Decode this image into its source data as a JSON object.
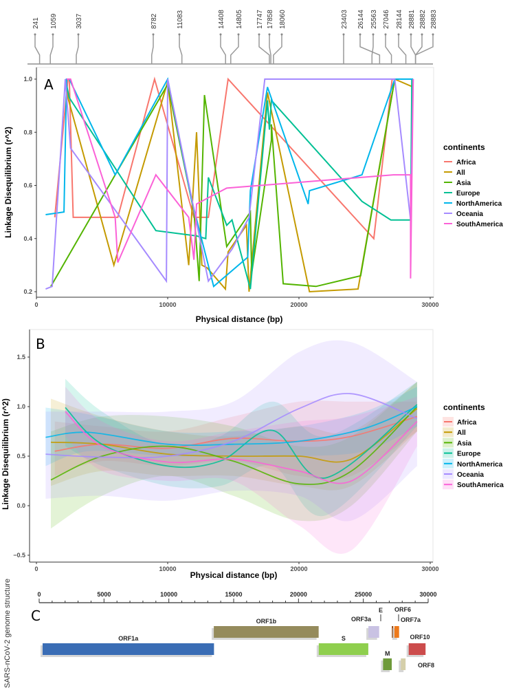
{
  "snp_track": {
    "positions": [
      "241",
      "1059",
      "3037",
      "8782",
      "11083",
      "14408",
      "14805",
      "17747",
      "17858",
      "18060",
      "23403",
      "26144",
      "25563",
      "27046",
      "28144",
      "28881",
      "28882",
      "28883"
    ]
  },
  "chart_data": [
    {
      "panel": "A",
      "type": "line",
      "title": "A",
      "xlabel": "Physical distance (bp)",
      "ylabel": "Linkage Disequilibrium (r^2)",
      "xlim": [
        0,
        30000
      ],
      "ylim": [
        0.2,
        1.0
      ],
      "x_ticks": [
        "0",
        "10000",
        "20000",
        "30000"
      ],
      "y_ticks": [
        "0.2",
        "0.4",
        "0.6",
        "0.8",
        "1.0"
      ],
      "grid": false,
      "legend": {
        "title": "continents",
        "placement": "right"
      },
      "series": [
        {
          "name": "Africa",
          "color": "#F8766D",
          "points": [
            [
              1400,
              0.48
            ],
            [
              2400,
              1.0
            ],
            [
              2500,
              1.0
            ],
            [
              2800,
              0.48
            ],
            [
              6200,
              0.48
            ],
            [
              9000,
              1.0
            ],
            [
              12000,
              0.48
            ],
            [
              13100,
              0.48
            ],
            [
              14600,
              1.0
            ],
            [
              25700,
              0.4
            ],
            [
              27100,
              1.0
            ],
            [
              28500,
              1.0
            ]
          ]
        },
        {
          "name": "All",
          "color": "#C49A00",
          "points": [
            [
              2200,
              1.0
            ],
            [
              2400,
              0.93
            ],
            [
              5900,
              0.3
            ],
            [
              10000,
              0.99
            ],
            [
              11600,
              0.3
            ],
            [
              12200,
              0.8
            ],
            [
              12600,
              0.3
            ],
            [
              13000,
              0.29
            ],
            [
              14400,
              0.21
            ],
            [
              14600,
              0.35
            ],
            [
              16000,
              0.45
            ],
            [
              16200,
              0.2
            ],
            [
              17600,
              0.95
            ],
            [
              20800,
              0.2
            ],
            [
              24500,
              0.21
            ],
            [
              27300,
              1.0
            ],
            [
              28700,
              0.97
            ]
          ]
        },
        {
          "name": "Asia",
          "color": "#53B400",
          "points": [
            [
              1100,
              0.22
            ],
            [
              6000,
              0.64
            ],
            [
              10000,
              0.98
            ],
            [
              12000,
              0.5
            ],
            [
              12400,
              0.24
            ],
            [
              12800,
              0.94
            ],
            [
              14500,
              0.37
            ],
            [
              16300,
              0.5
            ],
            [
              16400,
              0.27
            ],
            [
              17900,
              0.77
            ],
            [
              17900,
              0.83
            ],
            [
              18800,
              0.23
            ],
            [
              21300,
              0.22
            ],
            [
              24700,
              0.26
            ],
            [
              27300,
              1.0
            ]
          ]
        },
        {
          "name": "Europe",
          "color": "#00C094",
          "points": [
            [
              2200,
              1.0
            ],
            [
              2500,
              0.93
            ],
            [
              9100,
              0.43
            ],
            [
              12200,
              0.41
            ],
            [
              12900,
              0.4
            ],
            [
              13100,
              0.63
            ],
            [
              14500,
              0.45
            ],
            [
              14900,
              0.47
            ],
            [
              16300,
              0.21
            ],
            [
              17600,
              0.92
            ],
            [
              17750,
              0.81
            ],
            [
              17900,
              0.92
            ],
            [
              24800,
              0.54
            ],
            [
              27000,
              0.47
            ],
            [
              28500,
              0.47
            ],
            [
              28600,
              1.0
            ]
          ]
        },
        {
          "name": "NorthAmerica",
          "color": "#00B6EB",
          "points": [
            [
              700,
              0.49
            ],
            [
              2100,
              0.5
            ],
            [
              2300,
              1.0
            ],
            [
              2500,
              1.0
            ],
            [
              6000,
              0.64
            ],
            [
              10000,
              1.0
            ],
            [
              11800,
              0.55
            ],
            [
              13500,
              0.22
            ],
            [
              16100,
              0.33
            ],
            [
              16300,
              0.58
            ],
            [
              17600,
              0.97
            ],
            [
              20700,
              0.53
            ],
            [
              20800,
              0.58
            ],
            [
              24800,
              0.64
            ],
            [
              27300,
              1.0
            ],
            [
              28700,
              1.0
            ]
          ]
        },
        {
          "name": "Oceania",
          "color": "#A58AFF",
          "points": [
            [
              700,
              0.21
            ],
            [
              1200,
              0.22
            ],
            [
              2200,
              1.0
            ],
            [
              2600,
              0.74
            ],
            [
              9900,
              0.24
            ],
            [
              10000,
              1.0
            ],
            [
              13100,
              0.24
            ],
            [
              14900,
              0.36
            ],
            [
              16200,
              0.48
            ],
            [
              17400,
              1.0
            ],
            [
              27300,
              1.0
            ],
            [
              28500,
              0.47
            ],
            [
              28700,
              1.0
            ]
          ]
        },
        {
          "name": "SouthAmerica",
          "color": "#FB61D7",
          "points": [
            [
              2300,
              1.0
            ],
            [
              2600,
              1.0
            ],
            [
              6000,
              0.48
            ],
            [
              6200,
              0.31
            ],
            [
              9100,
              0.64
            ],
            [
              11600,
              0.48
            ],
            [
              12000,
              0.32
            ],
            [
              12200,
              0.53
            ],
            [
              14500,
              0.59
            ],
            [
              27200,
              0.64
            ],
            [
              28500,
              0.64
            ],
            [
              28500,
              0.25
            ],
            [
              28700,
              1.0
            ]
          ]
        }
      ]
    },
    {
      "panel": "B",
      "type": "line",
      "title": "B",
      "xlabel": "Physical distance (bp)",
      "ylabel": "Linkage Disequilibrium (r^2)",
      "xlim": [
        0,
        30000
      ],
      "ylim": [
        -0.5,
        1.5
      ],
      "x_ticks": [
        "0",
        "10000",
        "20000",
        "30000"
      ],
      "y_ticks": [
        "-0.5",
        "0.0",
        "0.5",
        "1.0",
        "1.5"
      ],
      "grid": false,
      "smoothed_with_confidence_band": true,
      "legend": {
        "title": "continents",
        "placement": "right"
      },
      "series": [
        {
          "name": "Africa",
          "color": "#F8766D",
          "x": [
            1400,
            5000,
            10000,
            15000,
            20000,
            24000,
            29000
          ],
          "y": [
            0.55,
            0.62,
            0.58,
            0.68,
            0.65,
            0.7,
            0.9
          ],
          "lower": [
            0.3,
            0.45,
            0.4,
            0.45,
            0.3,
            0.3,
            0.75
          ],
          "upper": [
            0.85,
            0.8,
            0.75,
            0.9,
            1.05,
            1.05,
            1.05
          ]
        },
        {
          "name": "All",
          "color": "#C49A00",
          "x": [
            1100,
            5000,
            10000,
            15000,
            20000,
            24000,
            29000
          ],
          "y": [
            0.64,
            0.62,
            0.52,
            0.5,
            0.5,
            0.47,
            0.98
          ],
          "lower": [
            0.2,
            0.35,
            0.3,
            0.3,
            0.2,
            0.2,
            0.75
          ],
          "upper": [
            1.08,
            0.9,
            0.75,
            0.7,
            0.8,
            0.75,
            1.25
          ]
        },
        {
          "name": "Asia",
          "color": "#53B400",
          "x": [
            1100,
            5000,
            10000,
            15000,
            20000,
            24000,
            29000
          ],
          "y": [
            0.26,
            0.5,
            0.6,
            0.45,
            0.22,
            0.35,
            1.0
          ],
          "lower": [
            -0.23,
            0.1,
            0.3,
            0.1,
            -0.15,
            0.0,
            0.75
          ],
          "upper": [
            0.75,
            0.9,
            0.9,
            0.8,
            0.6,
            0.7,
            1.25
          ]
        },
        {
          "name": "Europe",
          "color": "#00C094",
          "x": [
            2200,
            5000,
            10000,
            14000,
            18000,
            22000,
            29000
          ],
          "y": [
            0.99,
            0.62,
            0.4,
            0.45,
            0.76,
            0.28,
            1.02
          ],
          "lower": [
            0.6,
            0.4,
            0.2,
            0.2,
            0.4,
            -0.1,
            0.8
          ],
          "upper": [
            1.28,
            0.95,
            0.6,
            0.7,
            1.05,
            0.7,
            1.25
          ]
        },
        {
          "name": "NorthAmerica",
          "color": "#00B6EB",
          "x": [
            700,
            4000,
            10000,
            15000,
            20000,
            25000,
            29000
          ],
          "y": [
            0.69,
            0.74,
            0.62,
            0.62,
            0.65,
            0.78,
            1.0
          ],
          "lower": [
            0.4,
            0.55,
            0.5,
            0.5,
            0.5,
            0.55,
            0.8
          ],
          "upper": [
            0.99,
            0.92,
            0.75,
            0.75,
            0.8,
            0.95,
            1.2
          ]
        },
        {
          "name": "Oceania",
          "color": "#A58AFF",
          "x": [
            700,
            5000,
            10000,
            15000,
            20000,
            24000,
            29000
          ],
          "y": [
            0.52,
            0.49,
            0.5,
            0.65,
            0.98,
            1.13,
            0.88
          ],
          "lower": [
            0.07,
            0.1,
            0.05,
            0.15,
            0.1,
            -0.15,
            0.4
          ],
          "upper": [
            0.95,
            0.95,
            0.95,
            1.05,
            1.55,
            1.65,
            1.25
          ]
        },
        {
          "name": "SouthAmerica",
          "color": "#FB61D7",
          "x": [
            2200,
            5000,
            10000,
            15000,
            20000,
            24000,
            29000
          ],
          "y": [
            0.95,
            0.6,
            0.44,
            0.47,
            0.35,
            0.25,
            0.85
          ],
          "lower": [
            0.7,
            0.35,
            0.25,
            0.25,
            -0.2,
            -0.45,
            0.6
          ],
          "upper": [
            1.2,
            0.85,
            0.65,
            0.75,
            0.85,
            0.9,
            1.1
          ]
        }
      ]
    },
    {
      "panel": "C",
      "type": "diagram",
      "title": "C",
      "ylabel": "SARS-nCoV-2 genome structure",
      "xlim": [
        0,
        30000
      ],
      "x_ticks": [
        "0",
        "5000",
        "10000",
        "15000",
        "20000",
        "25000",
        "30000"
      ],
      "genes": [
        {
          "name": "ORF1a",
          "start": 266,
          "end": 13483,
          "color": "#3A6DB5",
          "row": 2
        },
        {
          "name": "ORF1b",
          "start": 13468,
          "end": 21555,
          "color": "#958B5C",
          "row": 1
        },
        {
          "name": "S",
          "start": 21563,
          "end": 25384,
          "color": "#8FCF4E",
          "row": 2
        },
        {
          "name": "ORF3a",
          "start": 25393,
          "end": 26220,
          "color": "#C9C2E3",
          "row": 1
        },
        {
          "name": "E",
          "start": 26245,
          "end": 26472,
          "color": "#C9C2E3",
          "row": 0
        },
        {
          "name": "M",
          "start": 26523,
          "end": 27191,
          "color": "#6E9A3A",
          "row": 3
        },
        {
          "name": "ORF6",
          "start": 27202,
          "end": 27387,
          "color": "#8B3A00",
          "row": 0
        },
        {
          "name": "ORF7a",
          "start": 27394,
          "end": 27759,
          "color": "#EE7A1B",
          "row": 1
        },
        {
          "name": "ORF8",
          "start": 27894,
          "end": 28259,
          "color": "#D5CFAA",
          "row": 3
        },
        {
          "name": "ORF10",
          "start": 28500,
          "end": 29800,
          "color": "#CC4C4C",
          "row": 2
        }
      ]
    }
  ]
}
